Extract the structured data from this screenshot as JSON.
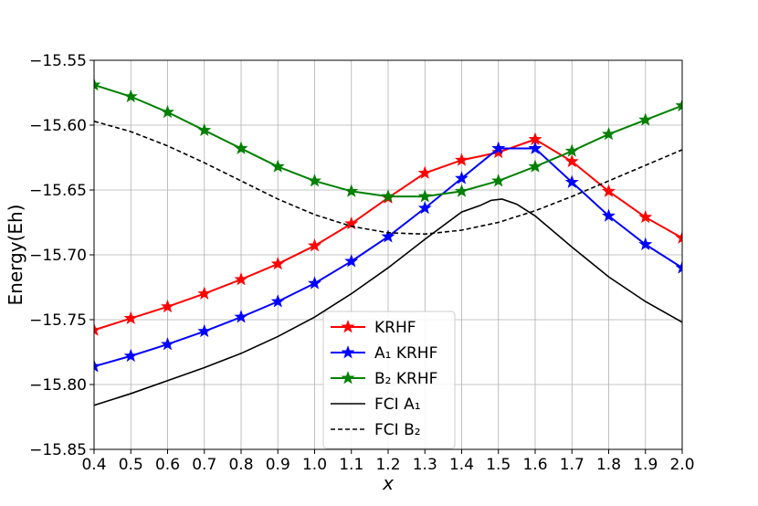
{
  "chart_data": {
    "type": "line",
    "xlabel": "x",
    "ylabel": "Energy(Eh)",
    "xlim": [
      0.4,
      2.0
    ],
    "ylim": [
      -15.85,
      -15.55
    ],
    "xticks": [
      "0.4",
      "0.5",
      "0.6",
      "0.7",
      "0.8",
      "0.9",
      "1.0",
      "1.1",
      "1.2",
      "1.3",
      "1.4",
      "1.5",
      "1.6",
      "1.7",
      "1.8",
      "1.9",
      "2.0"
    ],
    "yticks": [
      "−15.55",
      "−15.60",
      "−15.65",
      "−15.70",
      "−15.75",
      "−15.80",
      "−15.85"
    ],
    "ytick_values": [
      -15.55,
      -15.6,
      -15.65,
      -15.7,
      -15.75,
      -15.8,
      -15.85
    ],
    "grid": true,
    "legend_position": "lower-center",
    "series": [
      {
        "name": "KRHF",
        "color": "#ff0000",
        "style": "solid",
        "marker": "star",
        "x": [
          0.4,
          0.5,
          0.6,
          0.7,
          0.8,
          0.9,
          1.0,
          1.1,
          1.2,
          1.3,
          1.4,
          1.5,
          1.6,
          1.7,
          1.8,
          1.9,
          2.0
        ],
        "y": [
          -15.758,
          -15.749,
          -15.74,
          -15.73,
          -15.719,
          -15.707,
          -15.693,
          -15.676,
          -15.656,
          -15.637,
          -15.627,
          -15.621,
          -15.611,
          -15.628,
          -15.651,
          -15.671,
          -15.687
        ]
      },
      {
        "name": "A₁ KRHF",
        "color": "#0000ff",
        "style": "solid",
        "marker": "star",
        "x": [
          0.4,
          0.5,
          0.6,
          0.7,
          0.8,
          0.9,
          1.0,
          1.1,
          1.2,
          1.3,
          1.4,
          1.5,
          1.6,
          1.7,
          1.8,
          1.9,
          2.0
        ],
        "y": [
          -15.786,
          -15.778,
          -15.769,
          -15.759,
          -15.748,
          -15.736,
          -15.722,
          -15.705,
          -15.686,
          -15.664,
          -15.641,
          -15.618,
          -15.618,
          -15.644,
          -15.67,
          -15.692,
          -15.71
        ]
      },
      {
        "name": "B₂ KRHF",
        "color": "#008000",
        "style": "solid",
        "marker": "star",
        "x": [
          0.4,
          0.5,
          0.6,
          0.7,
          0.8,
          0.9,
          1.0,
          1.1,
          1.2,
          1.3,
          1.4,
          1.5,
          1.6,
          1.7,
          1.8,
          1.9,
          2.0
        ],
        "y": [
          -15.569,
          -15.578,
          -15.59,
          -15.604,
          -15.618,
          -15.632,
          -15.643,
          -15.651,
          -15.655,
          -15.655,
          -15.651,
          -15.643,
          -15.632,
          -15.62,
          -15.607,
          -15.596,
          -15.585
        ]
      },
      {
        "name": "FCI A₁",
        "color": "#000000",
        "style": "solid",
        "marker": "none",
        "x": [
          0.4,
          0.5,
          0.6,
          0.7,
          0.8,
          0.9,
          1.0,
          1.1,
          1.2,
          1.3,
          1.4,
          1.45,
          1.48,
          1.51,
          1.55,
          1.6,
          1.7,
          1.8,
          1.9,
          2.0
        ],
        "y": [
          -15.816,
          -15.807,
          -15.797,
          -15.787,
          -15.776,
          -15.763,
          -15.748,
          -15.73,
          -15.71,
          -15.688,
          -15.667,
          -15.662,
          -15.658,
          -15.657,
          -15.661,
          -15.67,
          -15.694,
          -15.717,
          -15.736,
          -15.752
        ]
      },
      {
        "name": "FCI B₂",
        "color": "#000000",
        "style": "dashed",
        "marker": "none",
        "x": [
          0.4,
          0.5,
          0.6,
          0.7,
          0.8,
          0.9,
          1.0,
          1.1,
          1.2,
          1.3,
          1.4,
          1.5,
          1.6,
          1.7,
          1.8,
          1.9,
          2.0
        ],
        "y": [
          -15.597,
          -15.605,
          -15.616,
          -15.629,
          -15.643,
          -15.657,
          -15.669,
          -15.678,
          -15.683,
          -15.684,
          -15.681,
          -15.675,
          -15.666,
          -15.655,
          -15.643,
          -15.631,
          -15.619
        ]
      }
    ]
  }
}
